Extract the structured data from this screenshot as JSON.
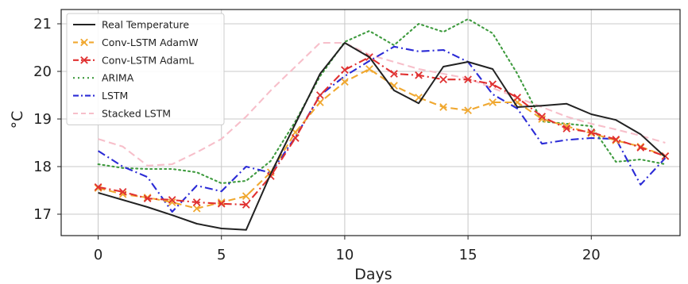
{
  "chart_data": {
    "type": "line",
    "title": "",
    "xlabel": "Days",
    "ylabel": "°C",
    "xlim": [
      -1.5,
      23.6
    ],
    "ylim": [
      16.55,
      21.3
    ],
    "xticks": [
      0,
      5,
      10,
      15,
      20
    ],
    "yticks": [
      17,
      18,
      19,
      20,
      21
    ],
    "xtick_labels": [
      "0",
      "5",
      "10",
      "15",
      "20"
    ],
    "ytick_labels": [
      "17",
      "18",
      "19",
      "20",
      "21"
    ],
    "grid": true,
    "legend_position": "top-left",
    "x": [
      0,
      1,
      2,
      3,
      4,
      5,
      6,
      7,
      8,
      9,
      10,
      11,
      12,
      13,
      14,
      15,
      16,
      17,
      18,
      19,
      20,
      21,
      22,
      23
    ],
    "series": [
      {
        "name": "Real Temperature",
        "color": "#222222",
        "style": "solid",
        "marker": "none",
        "values": [
          17.45,
          17.3,
          17.15,
          16.98,
          16.8,
          16.7,
          16.67,
          17.85,
          18.9,
          19.95,
          20.6,
          20.3,
          19.6,
          19.33,
          20.1,
          20.2,
          20.05,
          19.25,
          19.28,
          19.32,
          19.1,
          18.98,
          18.68,
          18.2
        ]
      },
      {
        "name": "Conv-LSTM AdamW",
        "color": "#f0a830",
        "style": "dashed",
        "marker": "x",
        "values": [
          17.55,
          17.42,
          17.35,
          17.25,
          17.12,
          17.25,
          17.38,
          17.88,
          18.72,
          19.35,
          19.78,
          20.05,
          19.7,
          19.45,
          19.25,
          19.18,
          19.35,
          19.35,
          19.0,
          18.85,
          18.7,
          18.55,
          18.42,
          18.22
        ]
      },
      {
        "name": "Conv-LSTM AdamL",
        "color": "#e03030",
        "style": "dashdot",
        "marker": "x",
        "values": [
          17.57,
          17.47,
          17.33,
          17.3,
          17.25,
          17.22,
          17.2,
          17.8,
          18.6,
          19.5,
          20.03,
          20.3,
          19.95,
          19.92,
          19.83,
          19.83,
          19.73,
          19.45,
          19.05,
          18.8,
          18.72,
          18.57,
          18.4,
          18.22
        ]
      },
      {
        "name": "ARIMA",
        "color": "#3f9b3f",
        "style": "dotted",
        "marker": "none",
        "values": [
          18.05,
          17.97,
          17.95,
          17.95,
          17.88,
          17.65,
          17.7,
          18.12,
          18.95,
          19.9,
          20.62,
          20.85,
          20.55,
          21.0,
          20.83,
          21.1,
          20.8,
          19.95,
          18.95,
          18.9,
          18.85,
          18.1,
          18.15,
          18.05
        ]
      },
      {
        "name": "LSTM",
        "color": "#2b2bd6",
        "style": "dashdot",
        "marker": "none",
        "values": [
          18.33,
          18.0,
          17.78,
          17.05,
          17.6,
          17.48,
          18.0,
          17.87,
          18.62,
          19.5,
          19.9,
          20.22,
          20.52,
          20.42,
          20.45,
          20.2,
          19.52,
          19.22,
          18.48,
          18.56,
          18.6,
          18.58,
          17.62,
          18.18
        ]
      },
      {
        "name": "Stacked LSTM",
        "color": "#f7bfca",
        "style": "dashed",
        "marker": "none",
        "values": [
          18.58,
          18.42,
          18.02,
          18.05,
          18.3,
          18.58,
          19.05,
          19.6,
          20.1,
          20.6,
          20.6,
          20.35,
          20.2,
          20.05,
          19.95,
          19.85,
          19.65,
          19.45,
          19.25,
          19.05,
          18.9,
          18.78,
          18.65,
          18.5
        ]
      }
    ]
  }
}
